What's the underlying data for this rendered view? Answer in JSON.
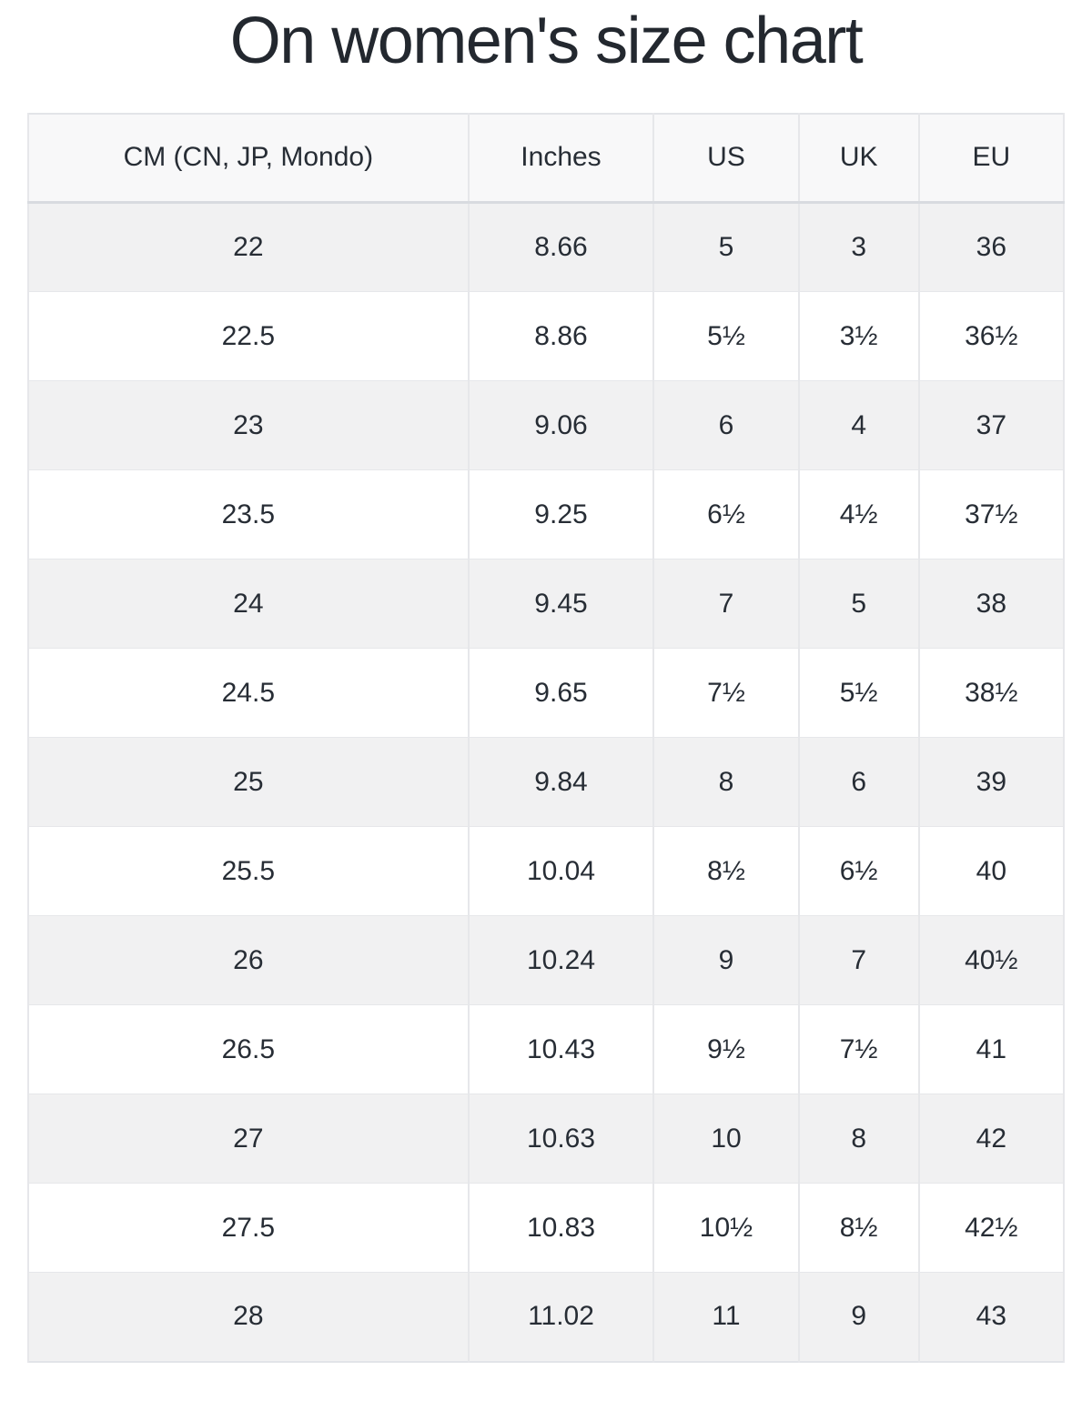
{
  "chart_data": {
    "type": "table",
    "title": "On women's size chart",
    "columns": [
      "CM (CN, JP, Mondo)",
      "Inches",
      "US",
      "UK",
      "EU"
    ],
    "rows": [
      [
        "22",
        "8.66",
        "5",
        "3",
        "36"
      ],
      [
        "22.5",
        "8.86",
        "5½",
        "3½",
        "36½"
      ],
      [
        "23",
        "9.06",
        "6",
        "4",
        "37"
      ],
      [
        "23.5",
        "9.25",
        "6½",
        "4½",
        "37½"
      ],
      [
        "24",
        "9.45",
        "7",
        "5",
        "38"
      ],
      [
        "24.5",
        "9.65",
        "7½",
        "5½",
        "38½"
      ],
      [
        "25",
        "9.84",
        "8",
        "6",
        "39"
      ],
      [
        "25.5",
        "10.04",
        "8½",
        "6½",
        "40"
      ],
      [
        "26",
        "10.24",
        "9",
        "7",
        "40½"
      ],
      [
        "26.5",
        "10.43",
        "9½",
        "7½",
        "41"
      ],
      [
        "27",
        "10.63",
        "10",
        "8",
        "42"
      ],
      [
        "27.5",
        "10.83",
        "10½",
        "8½",
        "42½"
      ],
      [
        "28",
        "11.02",
        "11",
        "9",
        "43"
      ]
    ],
    "layout": {
      "legend": "none",
      "grid": "on",
      "row_striping": "odd-rows-gray"
    }
  },
  "colors": {
    "page_bg": "#ffffff",
    "title_text": "#23282f",
    "cell_text": "#272d35",
    "header_bg": "#f8f8f9",
    "row_alt_bg": "#f1f1f2",
    "row_bg": "#ffffff",
    "grid_border": "#e6e7ea",
    "outer_border": "#e2e4e8",
    "header_bottom_border": "#d8dbe0"
  }
}
